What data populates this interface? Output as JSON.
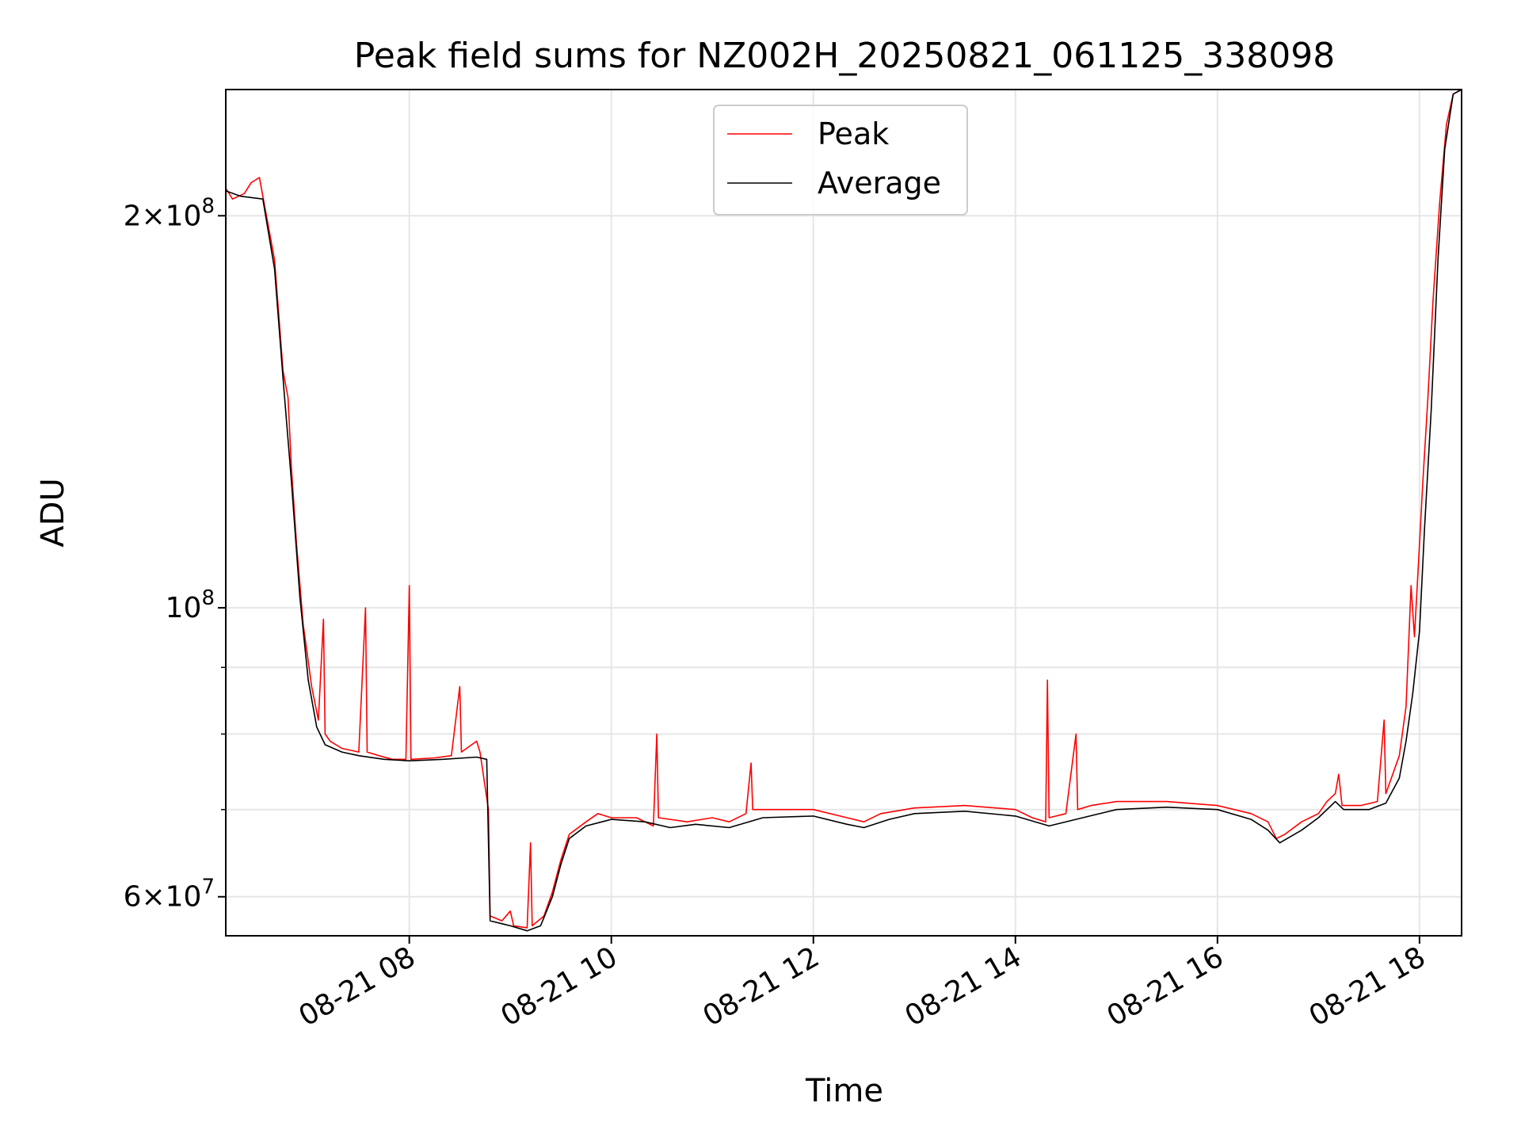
{
  "chart_data": {
    "type": "line",
    "title": "Peak field sums for NZ002H_20250821_061125_338098",
    "xlabel": "Time",
    "ylabel": "ADU",
    "x_range": [
      "2025-08-21 06:11",
      "2025-08-21 18:25"
    ],
    "xticks": [
      {
        "t": "2025-08-21 08:00",
        "label": "08-21 08"
      },
      {
        "t": "2025-08-21 10:00",
        "label": "08-21 10"
      },
      {
        "t": "2025-08-21 12:00",
        "label": "08-21 12"
      },
      {
        "t": "2025-08-21 14:00",
        "label": "08-21 14"
      },
      {
        "t": "2025-08-21 16:00",
        "label": "08-21 16"
      },
      {
        "t": "2025-08-21 18:00",
        "label": "08-21 18"
      }
    ],
    "yscale": "log",
    "ylim": [
      56000000,
      250000000
    ],
    "yticks_major": [
      {
        "value": 60000000,
        "mant": "6",
        "exp": "7"
      },
      {
        "value": 100000000,
        "mant": "",
        "exp": "8"
      },
      {
        "value": 200000000,
        "mant": "2",
        "exp": "8"
      }
    ],
    "yticks_minor": [
      70000000,
      80000000,
      90000000
    ],
    "grid": true,
    "legend": {
      "placement": "top-center",
      "entries": [
        "Peak",
        "Average"
      ]
    },
    "series": [
      {
        "name": "Peak",
        "color": "#ff0000",
        "points": [
          [
            "2025-08-21 06:11",
            210000000
          ],
          [
            "2025-08-21 06:15",
            206000000
          ],
          [
            "2025-08-21 06:22",
            208000000
          ],
          [
            "2025-08-21 06:26",
            212000000
          ],
          [
            "2025-08-21 06:31",
            214000000
          ],
          [
            "2025-08-21 06:33",
            207000000
          ],
          [
            "2025-08-21 06:40",
            185000000
          ],
          [
            "2025-08-21 06:45",
            152000000
          ],
          [
            "2025-08-21 06:48",
            145000000
          ],
          [
            "2025-08-21 06:50",
            128000000
          ],
          [
            "2025-08-21 06:53",
            112000000
          ],
          [
            "2025-08-21 06:57",
            97000000
          ],
          [
            "2025-08-21 06:59",
            93000000
          ],
          [
            "2025-08-21 07:02",
            87000000
          ],
          [
            "2025-08-21 07:06",
            82000000
          ],
          [
            "2025-08-21 07:09",
            98000000
          ],
          [
            "2025-08-21 07:10",
            80000000
          ],
          [
            "2025-08-21 07:13",
            79000000
          ],
          [
            "2025-08-21 07:20",
            78000000
          ],
          [
            "2025-08-21 07:30",
            77500000
          ],
          [
            "2025-08-21 07:34",
            100000000
          ],
          [
            "2025-08-21 07:35",
            77500000
          ],
          [
            "2025-08-21 07:42",
            77000000
          ],
          [
            "2025-08-21 07:50",
            76500000
          ],
          [
            "2025-08-21 07:58",
            76500000
          ],
          [
            "2025-08-21 08:00",
            104000000
          ],
          [
            "2025-08-21 08:01",
            76500000
          ],
          [
            "2025-08-21 08:15",
            76700000
          ],
          [
            "2025-08-21 08:25",
            77000000
          ],
          [
            "2025-08-21 08:30",
            87000000
          ],
          [
            "2025-08-21 08:31",
            77500000
          ],
          [
            "2025-08-21 08:40",
            79000000
          ],
          [
            "2025-08-21 08:42",
            77500000
          ],
          [
            "2025-08-21 08:47",
            70000000
          ],
          [
            "2025-08-21 08:48",
            58000000
          ],
          [
            "2025-08-21 08:55",
            57500000
          ],
          [
            "2025-08-21 09:00",
            58500000
          ],
          [
            "2025-08-21 09:02",
            57000000
          ],
          [
            "2025-08-21 09:10",
            56800000
          ],
          [
            "2025-08-21 09:12",
            66000000
          ],
          [
            "2025-08-21 09:13",
            57000000
          ],
          [
            "2025-08-21 09:20",
            58000000
          ],
          [
            "2025-08-21 09:25",
            60500000
          ],
          [
            "2025-08-21 09:30",
            64000000
          ],
          [
            "2025-08-21 09:35",
            67000000
          ],
          [
            "2025-08-21 09:45",
            68500000
          ],
          [
            "2025-08-21 09:52",
            69500000
          ],
          [
            "2025-08-21 10:00",
            69000000
          ],
          [
            "2025-08-21 10:15",
            69000000
          ],
          [
            "2025-08-21 10:25",
            68000000
          ],
          [
            "2025-08-21 10:27",
            80000000
          ],
          [
            "2025-08-21 10:28",
            69000000
          ],
          [
            "2025-08-21 10:45",
            68500000
          ],
          [
            "2025-08-21 11:00",
            69000000
          ],
          [
            "2025-08-21 11:10",
            68500000
          ],
          [
            "2025-08-21 11:20",
            69500000
          ],
          [
            "2025-08-21 11:23",
            76000000
          ],
          [
            "2025-08-21 11:24",
            70000000
          ],
          [
            "2025-08-21 11:45",
            70000000
          ],
          [
            "2025-08-21 12:00",
            70000000
          ],
          [
            "2025-08-21 12:20",
            69000000
          ],
          [
            "2025-08-21 12:30",
            68500000
          ],
          [
            "2025-08-21 12:40",
            69500000
          ],
          [
            "2025-08-21 13:00",
            70200000
          ],
          [
            "2025-08-21 13:30",
            70500000
          ],
          [
            "2025-08-21 14:00",
            70000000
          ],
          [
            "2025-08-21 14:10",
            69000000
          ],
          [
            "2025-08-21 14:18",
            68500000
          ],
          [
            "2025-08-21 14:19",
            88000000
          ],
          [
            "2025-08-21 14:20",
            69000000
          ],
          [
            "2025-08-21 14:30",
            69500000
          ],
          [
            "2025-08-21 14:36",
            80000000
          ],
          [
            "2025-08-21 14:37",
            70000000
          ],
          [
            "2025-08-21 14:45",
            70500000
          ],
          [
            "2025-08-21 15:00",
            71000000
          ],
          [
            "2025-08-21 15:30",
            71000000
          ],
          [
            "2025-08-21 16:00",
            70500000
          ],
          [
            "2025-08-21 16:20",
            69500000
          ],
          [
            "2025-08-21 16:30",
            68500000
          ],
          [
            "2025-08-21 16:35",
            66500000
          ],
          [
            "2025-08-21 16:40",
            67000000
          ],
          [
            "2025-08-21 16:50",
            68500000
          ],
          [
            "2025-08-21 17:00",
            69500000
          ],
          [
            "2025-08-21 17:05",
            71000000
          ],
          [
            "2025-08-21 17:10",
            72000000
          ],
          [
            "2025-08-21 17:12",
            74500000
          ],
          [
            "2025-08-21 17:14",
            70500000
          ],
          [
            "2025-08-21 17:25",
            70500000
          ],
          [
            "2025-08-21 17:35",
            71000000
          ],
          [
            "2025-08-21 17:39",
            82000000
          ],
          [
            "2025-08-21 17:40",
            72000000
          ],
          [
            "2025-08-21 17:48",
            77000000
          ],
          [
            "2025-08-21 17:52",
            84000000
          ],
          [
            "2025-08-21 17:55",
            104000000
          ],
          [
            "2025-08-21 17:57",
            95000000
          ],
          [
            "2025-08-21 18:00",
            112000000
          ],
          [
            "2025-08-21 18:02",
            125000000
          ],
          [
            "2025-08-21 18:05",
            145000000
          ],
          [
            "2025-08-21 18:08",
            172000000
          ],
          [
            "2025-08-21 18:12",
            205000000
          ],
          [
            "2025-08-21 18:16",
            235000000
          ],
          [
            "2025-08-21 18:20",
            248000000
          ],
          [
            "2025-08-21 18:25",
            250000000
          ]
        ]
      },
      {
        "name": "Average",
        "color": "#000000",
        "points": [
          [
            "2025-08-21 06:11",
            209000000
          ],
          [
            "2025-08-21 06:20",
            207000000
          ],
          [
            "2025-08-21 06:33",
            206000000
          ],
          [
            "2025-08-21 06:40",
            182000000
          ],
          [
            "2025-08-21 06:45",
            150000000
          ],
          [
            "2025-08-21 06:50",
            125000000
          ],
          [
            "2025-08-21 06:55",
            102000000
          ],
          [
            "2025-08-21 07:00",
            88000000
          ],
          [
            "2025-08-21 07:05",
            81000000
          ],
          [
            "2025-08-21 07:10",
            78500000
          ],
          [
            "2025-08-21 07:20",
            77500000
          ],
          [
            "2025-08-21 07:30",
            77000000
          ],
          [
            "2025-08-21 07:45",
            76500000
          ],
          [
            "2025-08-21 08:00",
            76300000
          ],
          [
            "2025-08-21 08:20",
            76500000
          ],
          [
            "2025-08-21 08:40",
            76800000
          ],
          [
            "2025-08-21 08:46",
            76500000
          ],
          [
            "2025-08-21 08:48",
            57500000
          ],
          [
            "2025-08-21 09:00",
            57000000
          ],
          [
            "2025-08-21 09:10",
            56500000
          ],
          [
            "2025-08-21 09:18",
            57000000
          ],
          [
            "2025-08-21 09:25",
            60000000
          ],
          [
            "2025-08-21 09:30",
            63500000
          ],
          [
            "2025-08-21 09:35",
            66500000
          ],
          [
            "2025-08-21 09:45",
            68000000
          ],
          [
            "2025-08-21 10:00",
            68800000
          ],
          [
            "2025-08-21 10:20",
            68500000
          ],
          [
            "2025-08-21 10:35",
            67800000
          ],
          [
            "2025-08-21 10:50",
            68200000
          ],
          [
            "2025-08-21 11:10",
            67800000
          ],
          [
            "2025-08-21 11:30",
            69000000
          ],
          [
            "2025-08-21 12:00",
            69200000
          ],
          [
            "2025-08-21 12:20",
            68200000
          ],
          [
            "2025-08-21 12:30",
            67800000
          ],
          [
            "2025-08-21 12:45",
            68800000
          ],
          [
            "2025-08-21 13:00",
            69500000
          ],
          [
            "2025-08-21 13:30",
            69800000
          ],
          [
            "2025-08-21 14:00",
            69200000
          ],
          [
            "2025-08-21 14:20",
            68000000
          ],
          [
            "2025-08-21 14:40",
            69000000
          ],
          [
            "2025-08-21 15:00",
            70000000
          ],
          [
            "2025-08-21 15:30",
            70300000
          ],
          [
            "2025-08-21 16:00",
            70000000
          ],
          [
            "2025-08-21 16:20",
            68800000
          ],
          [
            "2025-08-21 16:30",
            67500000
          ],
          [
            "2025-08-21 16:37",
            66000000
          ],
          [
            "2025-08-21 16:50",
            67500000
          ],
          [
            "2025-08-21 17:00",
            69000000
          ],
          [
            "2025-08-21 17:10",
            71000000
          ],
          [
            "2025-08-21 17:15",
            70000000
          ],
          [
            "2025-08-21 17:30",
            70000000
          ],
          [
            "2025-08-21 17:40",
            70800000
          ],
          [
            "2025-08-21 17:48",
            74000000
          ],
          [
            "2025-08-21 17:52",
            79000000
          ],
          [
            "2025-08-21 17:56",
            86000000
          ],
          [
            "2025-08-21 18:00",
            96000000
          ],
          [
            "2025-08-21 18:03",
            115000000
          ],
          [
            "2025-08-21 18:07",
            142000000
          ],
          [
            "2025-08-21 18:11",
            185000000
          ],
          [
            "2025-08-21 18:15",
            225000000
          ],
          [
            "2025-08-21 18:20",
            248000000
          ],
          [
            "2025-08-21 18:25",
            250000000
          ]
        ]
      }
    ]
  }
}
